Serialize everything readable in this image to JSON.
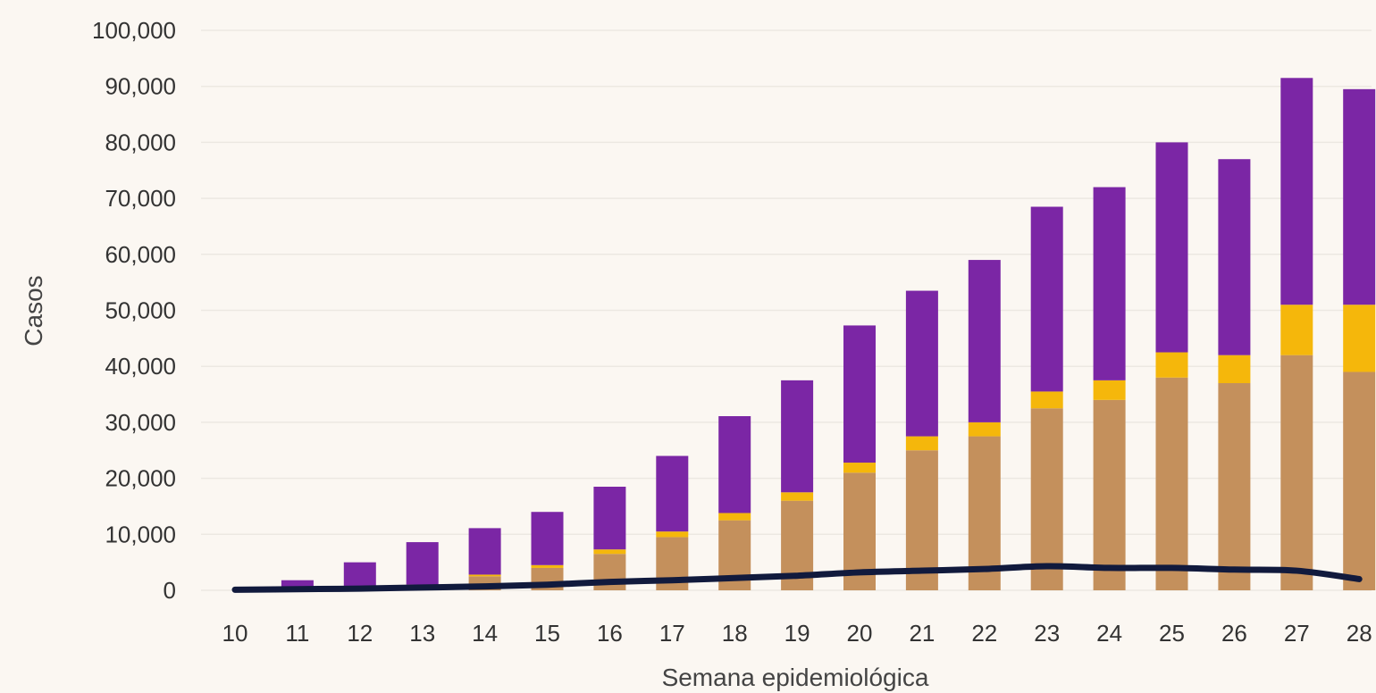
{
  "chart_data": {
    "type": "bar",
    "stacked": true,
    "xlabel": "Semana epidemiológica",
    "ylabel": "Casos",
    "ylim": [
      0,
      100000
    ],
    "yticks": [
      0,
      10000,
      20000,
      30000,
      40000,
      50000,
      60000,
      70000,
      80000,
      90000,
      100000
    ],
    "ytick_labels": [
      "0",
      "10,000",
      "20,000",
      "30,000",
      "40,000",
      "50,000",
      "60,000",
      "70,000",
      "80,000",
      "90,000",
      "100,000"
    ],
    "grid": true,
    "legend": "none",
    "categories": [
      "10",
      "11",
      "12",
      "13",
      "14",
      "15",
      "16",
      "17",
      "18",
      "19",
      "20",
      "21",
      "22",
      "23",
      "24",
      "25",
      "26",
      "27",
      "28"
    ],
    "series": [
      {
        "color": "#c4905c",
        "values": [
          0,
          100,
          300,
          900,
          2500,
          4000,
          6500,
          9500,
          12500,
          16000,
          21000,
          25000,
          27500,
          32500,
          34000,
          38000,
          37000,
          42000,
          39000
        ]
      },
      {
        "color": "#f5b70b",
        "values": [
          0,
          0,
          100,
          100,
          300,
          500,
          800,
          1000,
          1300,
          1500,
          1800,
          2500,
          2500,
          3000,
          3500,
          4500,
          5000,
          9000,
          12000
        ]
      },
      {
        "color": "#7b26a5",
        "values": [
          0,
          1700,
          4600,
          7600,
          8300,
          9500,
          11200,
          13500,
          17300,
          20000,
          24500,
          26000,
          29000,
          33000,
          34500,
          37500,
          35000,
          40500,
          38500
        ]
      }
    ],
    "line": {
      "color": "#111a3d",
      "values": [
        100,
        200,
        300,
        500,
        700,
        1000,
        1500,
        1800,
        2200,
        2600,
        3200,
        3500,
        3800,
        4300,
        4000,
        4000,
        3700,
        3500,
        2000
      ]
    }
  }
}
